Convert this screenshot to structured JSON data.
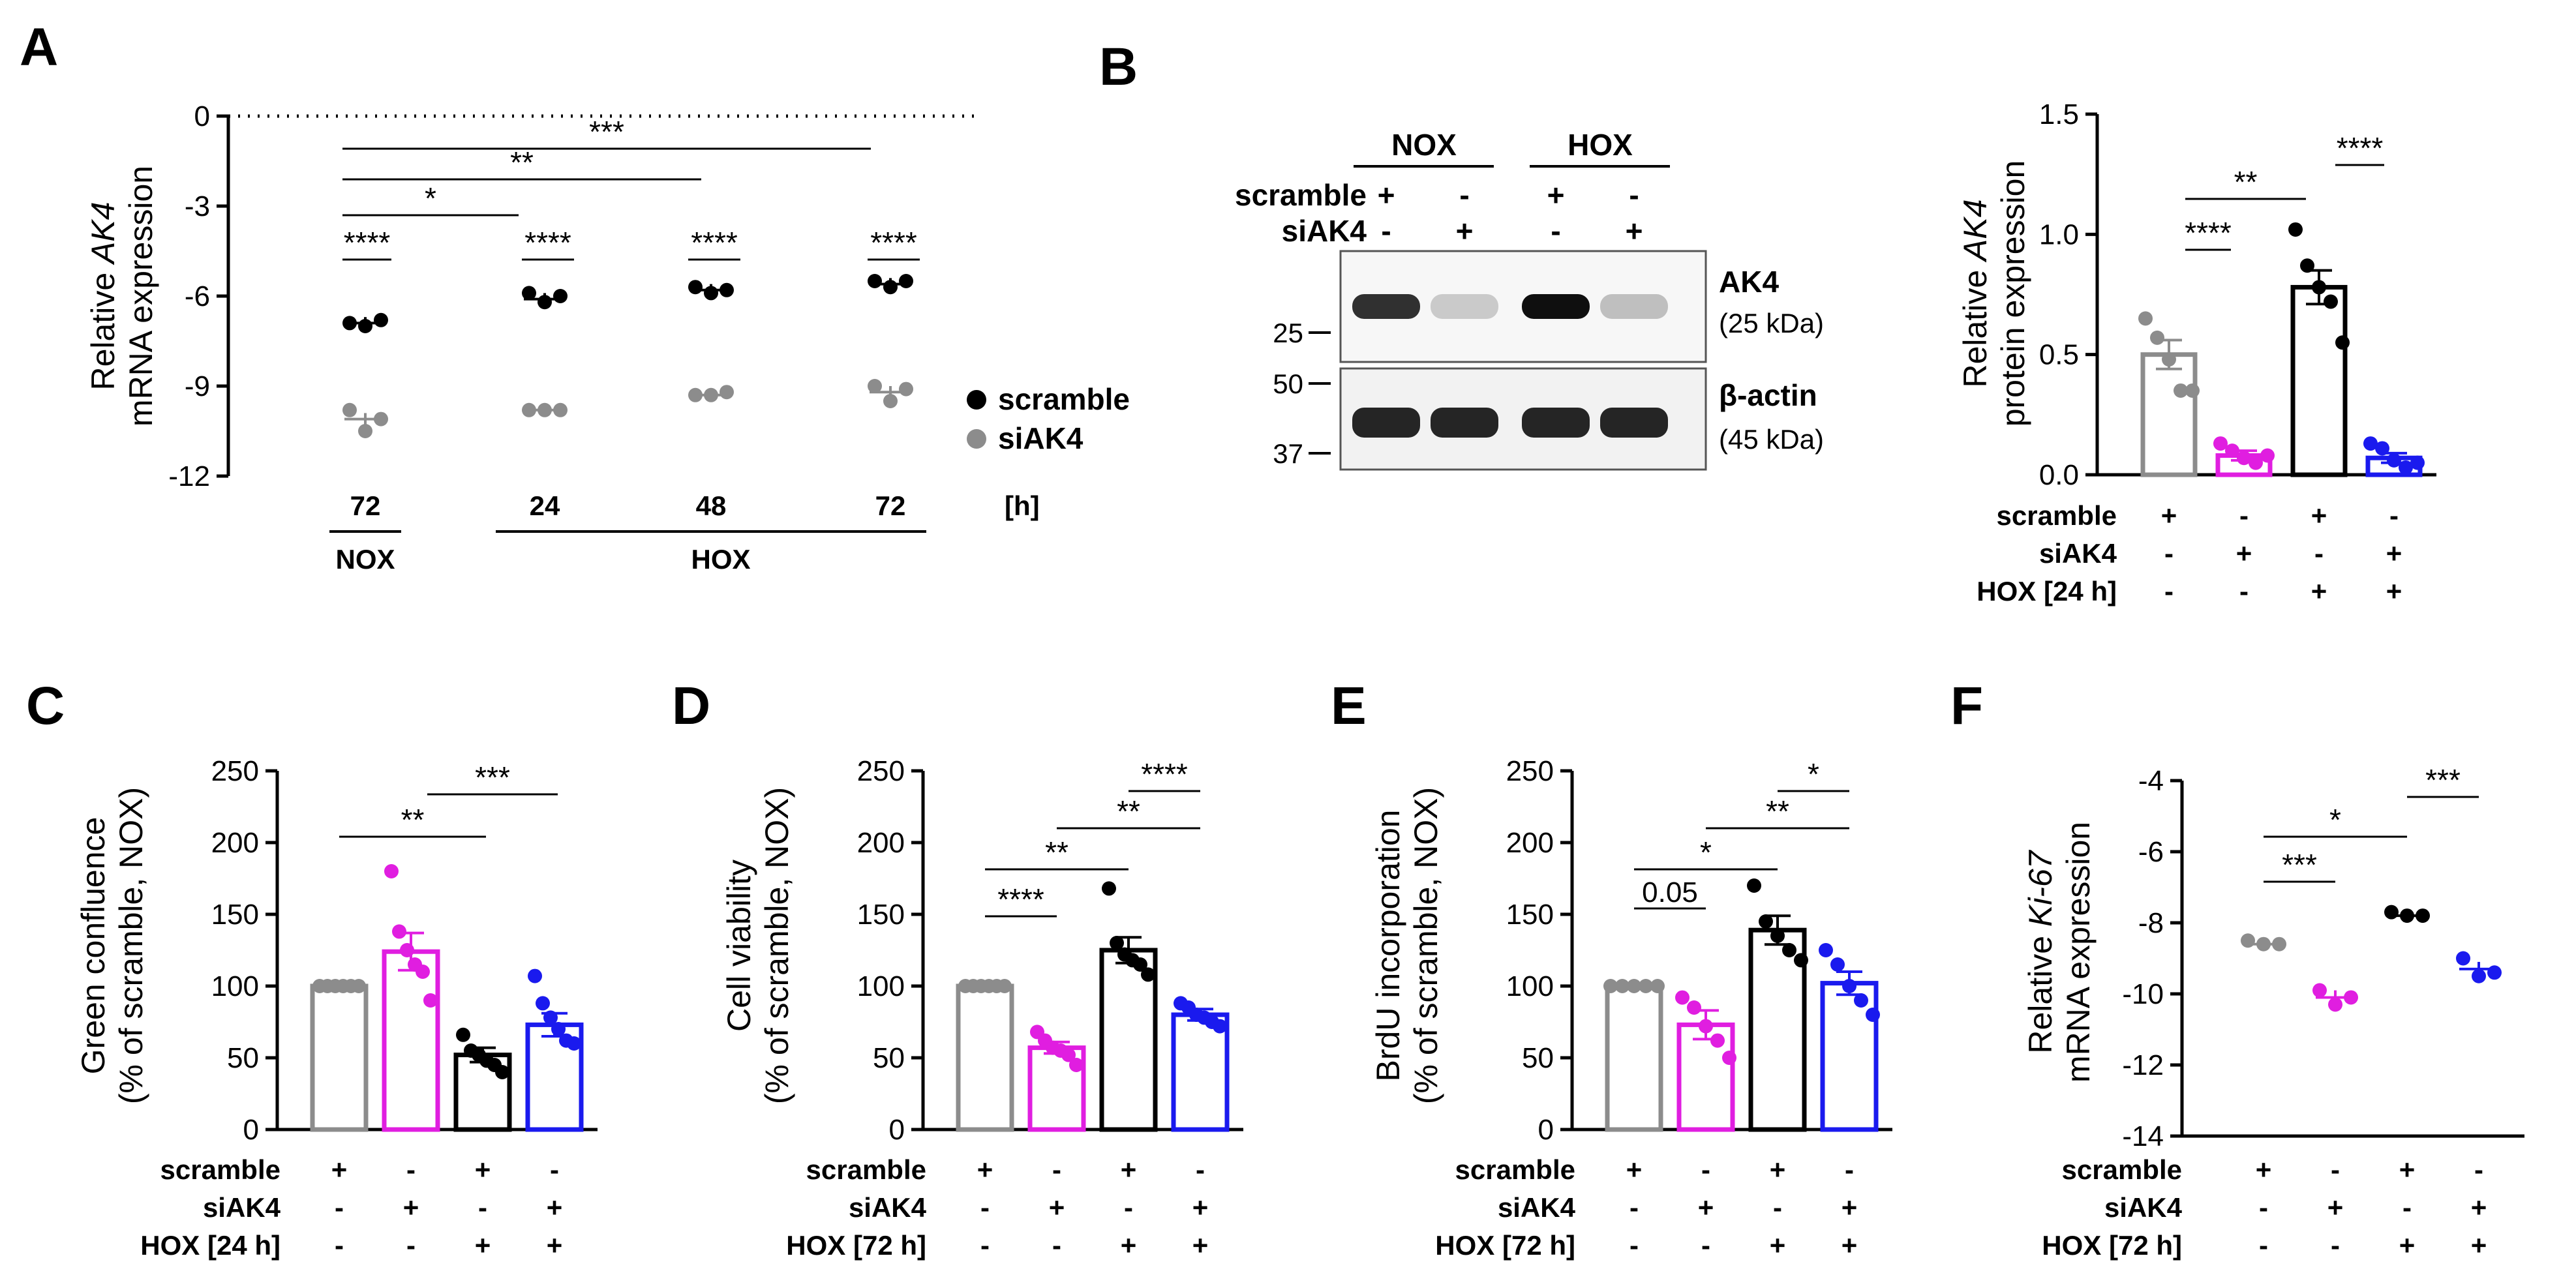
{
  "panel_labels": [
    "A",
    "B",
    "C",
    "D",
    "E",
    "F"
  ],
  "chart_data": [
    {
      "id": "A",
      "type": "scatter",
      "ylabel_prefix": "Relative ",
      "ylabel_gene": "AK4",
      "ylabel_line2": "mRNA expression",
      "ylim": [
        -12,
        0
      ],
      "yticks": [
        "0",
        "-3",
        "-6",
        "-9",
        "-12"
      ],
      "x_ticks": [
        "72",
        "24",
        "48",
        "72"
      ],
      "x_unit": "[h]",
      "groups": [
        "NOX",
        "HOX"
      ],
      "series": [
        {
          "name": "scramble",
          "color": "#000000",
          "points": [
            [
              -6.9,
              -7.0,
              -6.8
            ],
            [
              -5.9,
              -6.2,
              -6.0
            ],
            [
              -5.7,
              -5.9,
              -5.8
            ],
            [
              -5.5,
              -5.7,
              -5.5
            ]
          ],
          "means": [
            -6.9,
            -6.1,
            -5.8,
            -5.6
          ]
        },
        {
          "name": "siAK4",
          "color": "#8c8c8c",
          "points": [
            [
              -9.8,
              -10.5,
              -10.1
            ],
            [
              -9.8,
              -9.8,
              -9.8
            ],
            [
              -9.3,
              -9.3,
              -9.2
            ],
            [
              -9.0,
              -9.5,
              -9.1
            ]
          ],
          "means": [
            -10.1,
            -9.8,
            -9.3,
            -9.2
          ]
        }
      ],
      "significance": [
        "****",
        "****",
        "****",
        "****",
        "*",
        "**",
        "***"
      ]
    },
    {
      "id": "B-blot",
      "type": "table",
      "groups": [
        "NOX",
        "HOX"
      ],
      "rows": [
        {
          "label": "scramble",
          "values": [
            "+",
            "-",
            "+",
            "-"
          ]
        },
        {
          "label": "siAK4",
          "values": [
            "-",
            "+",
            "-",
            "+"
          ]
        }
      ],
      "bands": [
        {
          "name": "AK4",
          "size": "(25 kDa)",
          "intensity": [
            0.85,
            0.15,
            1.0,
            0.2
          ]
        },
        {
          "name": "β-actin",
          "size": "(45 kDa)",
          "intensity": [
            0.9,
            0.9,
            0.9,
            0.9
          ]
        }
      ],
      "markers": [
        "25",
        "50",
        "37"
      ]
    },
    {
      "id": "B",
      "type": "bar",
      "ylabel_prefix": "Relative ",
      "ylabel_gene": "AK4",
      "ylabel_line2": "protein expression",
      "ylim": [
        0,
        1.5
      ],
      "yticks": [
        "0.0",
        "0.5",
        "1.0",
        "1.5"
      ],
      "values": [
        0.5,
        0.08,
        0.78,
        0.07
      ],
      "errors": [
        0.06,
        0.02,
        0.07,
        0.02
      ],
      "points": [
        [
          0.65,
          0.57,
          0.48,
          0.35,
          0.35
        ],
        [
          0.13,
          0.1,
          0.07,
          0.05,
          0.08
        ],
        [
          1.02,
          0.87,
          0.78,
          0.72,
          0.55
        ],
        [
          0.13,
          0.11,
          0.06,
          0.03,
          0.05
        ]
      ],
      "colors": [
        "#8c8c8c",
        "#e01ee0",
        "#000000",
        "#1a1aee"
      ],
      "cond_rows": [
        {
          "label": "scramble",
          "values": [
            "+",
            "-",
            "+",
            "-"
          ]
        },
        {
          "label": "siAK4",
          "values": [
            "-",
            "+",
            "-",
            "+"
          ]
        },
        {
          "label": "HOX [24 h]",
          "values": [
            "-",
            "-",
            "+",
            "+"
          ]
        }
      ],
      "significance": [
        "****",
        "**",
        "****"
      ]
    },
    {
      "id": "C",
      "type": "bar",
      "ylabel_line1": "Green confluence",
      "ylabel_line2": "(% of scramble, NOX)",
      "ylim": [
        0,
        250
      ],
      "yticks": [
        "0",
        "50",
        "100",
        "150",
        "200",
        "250"
      ],
      "values": [
        100,
        124,
        52,
        73
      ],
      "errors": [
        0,
        13,
        5,
        8
      ],
      "points": [
        [
          100,
          100,
          100,
          100,
          100,
          100
        ],
        [
          180,
          138,
          125,
          115,
          110,
          90
        ],
        [
          66,
          55,
          52,
          48,
          45,
          40
        ],
        [
          107,
          88,
          78,
          70,
          62,
          60
        ]
      ],
      "colors": [
        "#8c8c8c",
        "#e01ee0",
        "#000000",
        "#1a1aee"
      ],
      "cond_rows": [
        {
          "label": "scramble",
          "values": [
            "+",
            "-",
            "+",
            "-"
          ]
        },
        {
          "label": "siAK4",
          "values": [
            "-",
            "+",
            "-",
            "+"
          ]
        },
        {
          "label": "HOX [24 h]",
          "values": [
            "-",
            "-",
            "+",
            "+"
          ]
        }
      ],
      "significance": [
        "**",
        "***"
      ]
    },
    {
      "id": "D",
      "type": "bar",
      "ylabel_line1": "Cell viability",
      "ylabel_line2": "(% of scramble, NOX)",
      "ylim": [
        0,
        250
      ],
      "yticks": [
        "0",
        "50",
        "100",
        "150",
        "200",
        "250"
      ],
      "values": [
        100,
        57,
        125,
        80
      ],
      "errors": [
        0,
        4,
        9,
        4
      ],
      "points": [
        [
          100,
          100,
          100,
          100,
          100,
          100
        ],
        [
          68,
          62,
          57,
          55,
          52,
          45
        ],
        [
          168,
          130,
          122,
          118,
          115,
          108
        ],
        [
          88,
          85,
          80,
          78,
          75,
          72
        ]
      ],
      "colors": [
        "#8c8c8c",
        "#e01ee0",
        "#000000",
        "#1a1aee"
      ],
      "cond_rows": [
        {
          "label": "scramble",
          "values": [
            "+",
            "-",
            "+",
            "-"
          ]
        },
        {
          "label": "siAK4",
          "values": [
            "-",
            "+",
            "-",
            "+"
          ]
        },
        {
          "label": "HOX [72 h]",
          "values": [
            "-",
            "-",
            "+",
            "+"
          ]
        }
      ],
      "significance": [
        "****",
        "**",
        "**",
        "****"
      ]
    },
    {
      "id": "E",
      "type": "bar",
      "ylabel_line1": "BrdU incorporation",
      "ylabel_line2": "(% of scramble, NOX)",
      "ylim": [
        0,
        250
      ],
      "yticks": [
        "0",
        "50",
        "100",
        "150",
        "200",
        "250"
      ],
      "values": [
        100,
        73,
        139,
        102
      ],
      "errors": [
        0,
        10,
        10,
        8
      ],
      "points": [
        [
          100,
          100,
          100,
          100,
          100
        ],
        [
          92,
          85,
          72,
          62,
          50
        ],
        [
          170,
          145,
          135,
          125,
          118
        ],
        [
          125,
          115,
          100,
          90,
          80
        ]
      ],
      "colors": [
        "#8c8c8c",
        "#e01ee0",
        "#000000",
        "#1a1aee"
      ],
      "cond_rows": [
        {
          "label": "scramble",
          "values": [
            "+",
            "-",
            "+",
            "-"
          ]
        },
        {
          "label": "siAK4",
          "values": [
            "-",
            "+",
            "-",
            "+"
          ]
        },
        {
          "label": "HOX [72 h]",
          "values": [
            "-",
            "-",
            "+",
            "+"
          ]
        }
      ],
      "significance": [
        "0.05",
        "*",
        "**",
        "*"
      ]
    },
    {
      "id": "F",
      "type": "scatter",
      "ylabel_prefix": "Relative ",
      "ylabel_gene": "Ki-67",
      "ylabel_line2": "mRNA expression",
      "ylim": [
        -14,
        -4
      ],
      "yticks": [
        "-4",
        "-6",
        "-8",
        "-10",
        "-12",
        "-14"
      ],
      "means": [
        -8.6,
        -10.1,
        -7.8,
        -9.3
      ],
      "errors": [
        0.1,
        0.2,
        0.1,
        0.2
      ],
      "points": [
        [
          -8.5,
          -8.6,
          -8.6
        ],
        [
          -9.9,
          -10.3,
          -10.1
        ],
        [
          -7.7,
          -7.8,
          -7.8
        ],
        [
          -9.0,
          -9.5,
          -9.4
        ]
      ],
      "colors": [
        "#8c8c8c",
        "#e01ee0",
        "#000000",
        "#1a1aee"
      ],
      "cond_rows": [
        {
          "label": "scramble",
          "values": [
            "+",
            "-",
            "+",
            "-"
          ]
        },
        {
          "label": "siAK4",
          "values": [
            "-",
            "+",
            "-",
            "+"
          ]
        },
        {
          "label": "HOX [72 h]",
          "values": [
            "-",
            "-",
            "+",
            "+"
          ]
        }
      ],
      "significance": [
        "***",
        "*",
        "***"
      ]
    }
  ]
}
